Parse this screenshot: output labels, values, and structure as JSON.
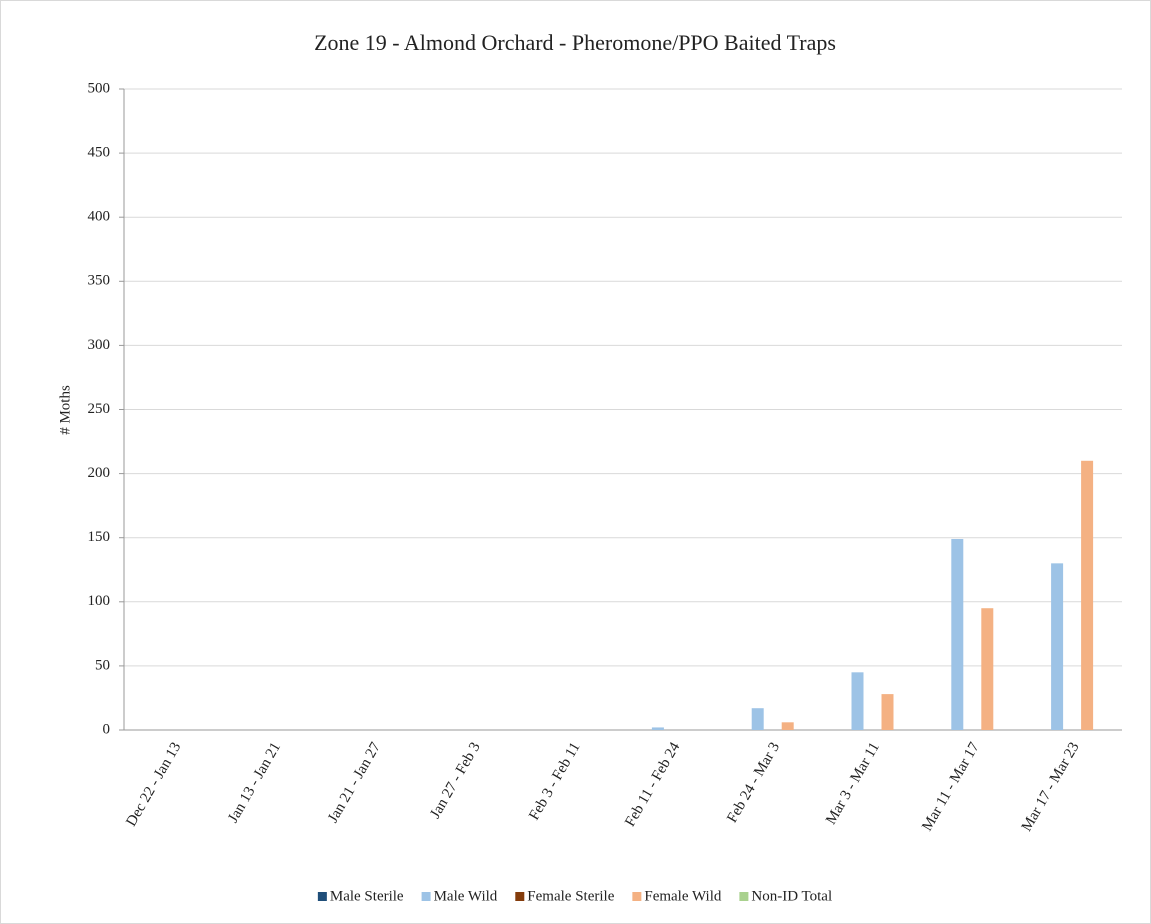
{
  "chart_data": {
    "type": "bar",
    "title": "Zone 19 - Almond Orchard - Pheromone/PPO  Baited Traps",
    "y_label": "# Moths",
    "categories": [
      "Dec 22 - Jan 13",
      "Jan 13 - Jan 21",
      "Jan 21 - Jan 27",
      "Jan 27 - Feb 3",
      "Feb 3 - Feb 11",
      "Feb 11 - Feb 24",
      "Feb 24 - Mar 3",
      "Mar 3 - Mar 11",
      "Mar 11 - Mar 17",
      "Mar 17 - Mar 23"
    ],
    "series": [
      {
        "name": "Male Sterile",
        "color": "#1f4e79",
        "values": [
          0,
          0,
          0,
          0,
          0,
          0,
          0,
          0,
          0,
          0
        ]
      },
      {
        "name": "Male Wild",
        "color": "#9dc3e6",
        "values": [
          0,
          0,
          0,
          0,
          0,
          2,
          17,
          45,
          149,
          130
        ]
      },
      {
        "name": "Female Sterile",
        "color": "#843c0c",
        "values": [
          0,
          0,
          0,
          0,
          0,
          0,
          0,
          0,
          0,
          0
        ]
      },
      {
        "name": "Female Wild",
        "color": "#f4b183",
        "values": [
          0,
          0,
          0,
          0,
          0,
          0,
          6,
          28,
          95,
          210
        ]
      },
      {
        "name": "Non-ID Total",
        "color": "#a9d18e",
        "values": [
          0,
          0,
          0,
          0,
          0,
          0,
          0,
          0,
          0,
          0
        ]
      }
    ],
    "ylim": [
      0,
      500
    ],
    "yticks": [
      0,
      50,
      100,
      150,
      200,
      250,
      300,
      350,
      400,
      450,
      500
    ],
    "grid": true,
    "legend": "bottom"
  }
}
